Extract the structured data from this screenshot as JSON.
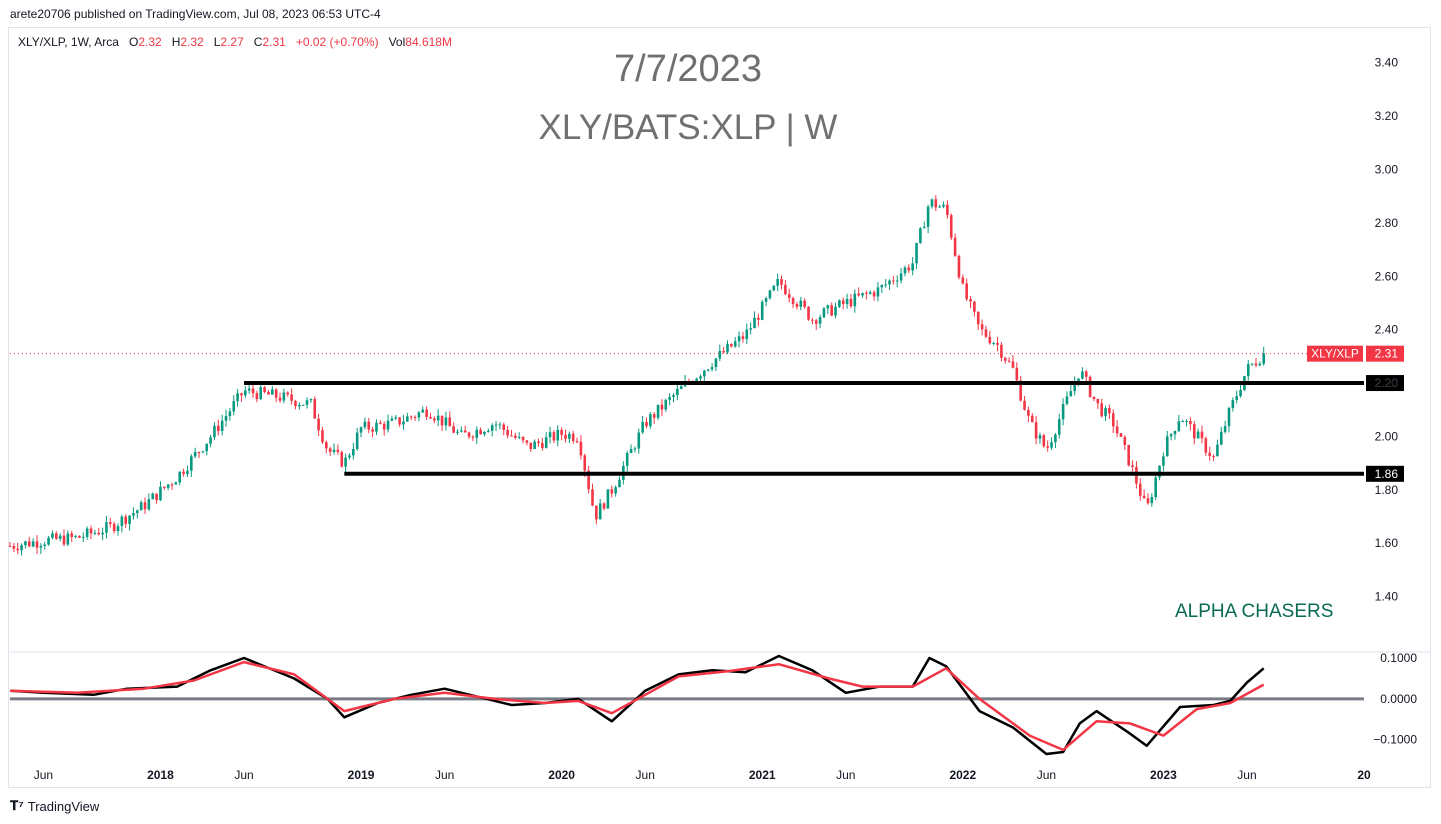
{
  "header": {
    "published": "arete20706 published on TradingView.com, Jul 08, 2023 06:53 UTC-4"
  },
  "legend": {
    "symbol": "XLY/XLP, 1W, Arca",
    "o_label": "O",
    "o_value": "2.32",
    "h_label": "H",
    "h_value": "2.32",
    "l_label": "L",
    "l_value": "2.27",
    "c_label": "C",
    "c_value": "2.31",
    "change": "+0.02 (+0.70%)",
    "vol_label": "Vol",
    "vol_value": "84.618M"
  },
  "watermark": {
    "date": "7/7/2023",
    "symbol": "XLY/BATS:XLP | W"
  },
  "annotation": "ALPHA CHASERS",
  "footer": {
    "brand": "TradingView"
  },
  "colors": {
    "up": "#089981",
    "down": "#f23645",
    "signal": "#f23645",
    "macd": "#000000",
    "zero": "#787b86"
  },
  "chart_data": [
    {
      "type": "candlestick",
      "title": "XLY/XLP, 1W, Arca",
      "x_axis_labels": [
        "Jun",
        "2018",
        "Jun",
        "2019",
        "Jun",
        "2020",
        "Jun",
        "2021",
        "Jun",
        "2022",
        "Jun",
        "2023",
        "Jun",
        "20"
      ],
      "x_ticks": [
        "2017-06",
        "2018-01",
        "2018-06",
        "2019-01",
        "2019-06",
        "2020-01",
        "2020-06",
        "2021-01",
        "2021-06",
        "2022-01",
        "2022-06",
        "2023-01",
        "2023-06",
        "2024-01"
      ],
      "y_ticks": [
        "1.40",
        "1.60",
        "1.80",
        "2.00",
        "2.20",
        "2.40",
        "2.60",
        "2.80",
        "3.00",
        "3.20",
        "3.40"
      ],
      "ylim": [
        1.2,
        3.47
      ],
      "x_range": [
        "2017-04",
        "2024-01"
      ],
      "last_price_label": {
        "symbol": "XLY/XLP",
        "value": "2.31",
        "price": 2.31
      },
      "horizontal_levels": [
        {
          "label": "2.20",
          "value": 2.2,
          "from": "2018-06"
        },
        {
          "label": "1.86",
          "value": 1.86,
          "from": "2018-12"
        }
      ],
      "close_path": [
        [
          "2017-04",
          1.59
        ],
        [
          "2017-06",
          1.61
        ],
        [
          "2017-08",
          1.62
        ],
        [
          "2017-10",
          1.66
        ],
        [
          "2017-12",
          1.74
        ],
        [
          "2018-02",
          1.85
        ],
        [
          "2018-04",
          2.0
        ],
        [
          "2018-06",
          2.17
        ],
        [
          "2018-08",
          2.15
        ],
        [
          "2018-10",
          2.12
        ],
        [
          "2018-11",
          1.95
        ],
        [
          "2018-12",
          1.9
        ],
        [
          "2019-01",
          2.03
        ],
        [
          "2019-03",
          2.05
        ],
        [
          "2019-05",
          2.1
        ],
        [
          "2019-07",
          2.0
        ],
        [
          "2019-09",
          2.05
        ],
        [
          "2019-11",
          1.96
        ],
        [
          "2020-01",
          2.01
        ],
        [
          "2020-02",
          2.0
        ],
        [
          "2020-03",
          1.7
        ],
        [
          "2020-04",
          1.8
        ],
        [
          "2020-06",
          2.05
        ],
        [
          "2020-08",
          2.17
        ],
        [
          "2020-10",
          2.28
        ],
        [
          "2020-12",
          2.38
        ],
        [
          "2021-02",
          2.58
        ],
        [
          "2021-04",
          2.44
        ],
        [
          "2021-06",
          2.5
        ],
        [
          "2021-08",
          2.55
        ],
        [
          "2021-10",
          2.65
        ],
        [
          "2021-11",
          2.88
        ],
        [
          "2021-12",
          2.85
        ],
        [
          "2022-01",
          2.55
        ],
        [
          "2022-02",
          2.4
        ],
        [
          "2022-03",
          2.35
        ],
        [
          "2022-04",
          2.25
        ],
        [
          "2022-05",
          2.05
        ],
        [
          "2022-06",
          1.95
        ],
        [
          "2022-08",
          2.25
        ],
        [
          "2022-09",
          2.12
        ],
        [
          "2022-10",
          2.05
        ],
        [
          "2022-11",
          1.9
        ],
        [
          "2022-12",
          1.72
        ],
        [
          "2023-01",
          1.95
        ],
        [
          "2023-02",
          2.08
        ],
        [
          "2023-04",
          1.92
        ],
        [
          "2023-05",
          2.1
        ],
        [
          "2023-06",
          2.25
        ],
        [
          "2023-07",
          2.31
        ]
      ]
    },
    {
      "type": "line",
      "title": "",
      "y_ticks": [
        "0.1000",
        "0.0000",
        "−0.1000"
      ],
      "ylim": [
        -0.135,
        0.105
      ],
      "zero_line": 0,
      "series": [
        {
          "color": "#000000",
          "points": [
            [
              "2017-04",
              0.02
            ],
            [
              "2017-06",
              0.015
            ],
            [
              "2017-09",
              0.01
            ],
            [
              "2017-11",
              0.025
            ],
            [
              "2018-02",
              0.03
            ],
            [
              "2018-04",
              0.07
            ],
            [
              "2018-06",
              0.1
            ],
            [
              "2018-09",
              0.05
            ],
            [
              "2018-11",
              0.0
            ],
            [
              "2018-12",
              -0.045
            ],
            [
              "2019-02",
              -0.01
            ],
            [
              "2019-04",
              0.01
            ],
            [
              "2019-06",
              0.025
            ],
            [
              "2019-08",
              0.005
            ],
            [
              "2019-10",
              -0.015
            ],
            [
              "2019-12",
              -0.01
            ],
            [
              "2020-02",
              0.0
            ],
            [
              "2020-04",
              -0.055
            ],
            [
              "2020-06",
              0.02
            ],
            [
              "2020-08",
              0.06
            ],
            [
              "2020-10",
              0.07
            ],
            [
              "2020-12",
              0.065
            ],
            [
              "2021-02",
              0.105
            ],
            [
              "2021-04",
              0.07
            ],
            [
              "2021-06",
              0.015
            ],
            [
              "2021-08",
              0.03
            ],
            [
              "2021-10",
              0.03
            ],
            [
              "2021-11",
              0.1
            ],
            [
              "2021-12",
              0.08
            ],
            [
              "2022-02",
              -0.03
            ],
            [
              "2022-04",
              -0.07
            ],
            [
              "2022-06",
              -0.135
            ],
            [
              "2022-07",
              -0.13
            ],
            [
              "2022-08",
              -0.06
            ],
            [
              "2022-09",
              -0.03
            ],
            [
              "2022-11",
              -0.085
            ],
            [
              "2022-12",
              -0.115
            ],
            [
              "2023-02",
              -0.02
            ],
            [
              "2023-04",
              -0.015
            ],
            [
              "2023-05",
              -0.005
            ],
            [
              "2023-06",
              0.04
            ],
            [
              "2023-07",
              0.075
            ]
          ]
        },
        {
          "color": "#f23645",
          "points": [
            [
              "2017-04",
              0.02
            ],
            [
              "2017-08",
              0.015
            ],
            [
              "2017-12",
              0.025
            ],
            [
              "2018-03",
              0.045
            ],
            [
              "2018-06",
              0.09
            ],
            [
              "2018-09",
              0.06
            ],
            [
              "2018-12",
              -0.03
            ],
            [
              "2019-03",
              0.0
            ],
            [
              "2019-06",
              0.015
            ],
            [
              "2019-09",
              0.0
            ],
            [
              "2019-12",
              -0.01
            ],
            [
              "2020-02",
              -0.005
            ],
            [
              "2020-04",
              -0.035
            ],
            [
              "2020-06",
              0.01
            ],
            [
              "2020-08",
              0.055
            ],
            [
              "2020-11",
              0.068
            ],
            [
              "2021-02",
              0.085
            ],
            [
              "2021-05",
              0.05
            ],
            [
              "2021-07",
              0.03
            ],
            [
              "2021-10",
              0.03
            ],
            [
              "2021-12",
              0.075
            ],
            [
              "2022-02",
              0.0
            ],
            [
              "2022-05",
              -0.09
            ],
            [
              "2022-07",
              -0.125
            ],
            [
              "2022-09",
              -0.055
            ],
            [
              "2022-11",
              -0.06
            ],
            [
              "2023-01",
              -0.09
            ],
            [
              "2023-03",
              -0.025
            ],
            [
              "2023-05",
              -0.01
            ],
            [
              "2023-07",
              0.035
            ]
          ]
        }
      ]
    }
  ]
}
